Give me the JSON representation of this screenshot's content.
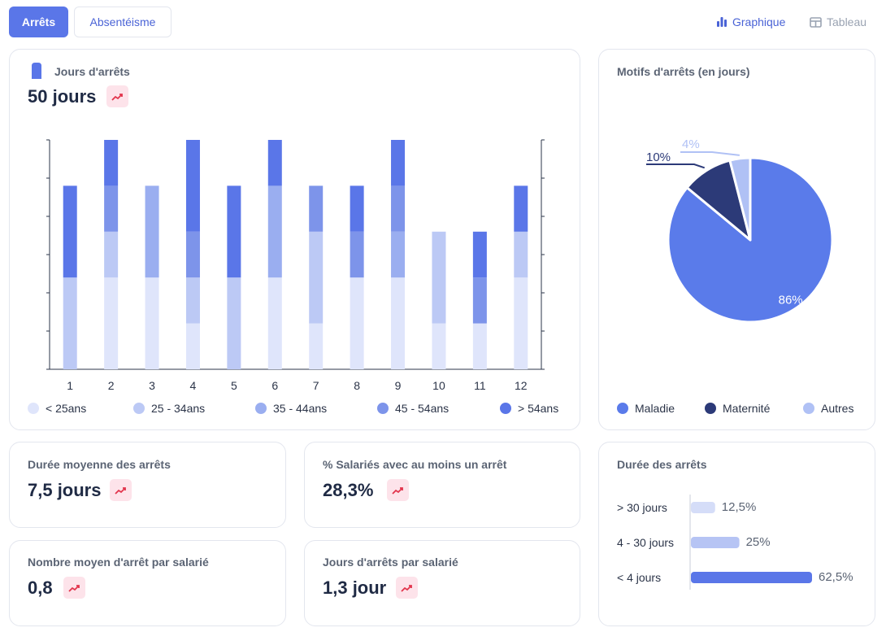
{
  "tabs": {
    "active": "Arrêts",
    "inactive": "Absentéisme"
  },
  "view": {
    "graph": "Graphique",
    "table": "Tableau"
  },
  "colors": {
    "age": [
      "#dfe5fb",
      "#bcc9f5",
      "#9aaef0",
      "#7d94ea",
      "#5a76e8"
    ],
    "pie": [
      "#5a7bea",
      "#2c3a78",
      "#b0c1f5"
    ],
    "trend_icon": "#e2344c",
    "hbar": [
      "#d5ddf8",
      "#b6c4f4",
      "#5a76e8"
    ]
  },
  "main": {
    "title": "Jours d'arrêts",
    "value": "50 jours"
  },
  "chart_data": [
    {
      "type": "bar",
      "stacked": true,
      "categories": [
        "1",
        "2",
        "3",
        "4",
        "5",
        "6",
        "7",
        "8",
        "9",
        "10",
        "11",
        "12"
      ],
      "series": [
        {
          "name": "< 25ans",
          "values": [
            0,
            2,
            2,
            1,
            0,
            2,
            1,
            2,
            2,
            1,
            1,
            2
          ]
        },
        {
          "name": "25 - 34ans",
          "values": [
            2,
            1,
            0,
            1,
            2,
            0,
            2,
            0,
            0,
            2,
            0,
            1
          ]
        },
        {
          "name": "35 - 44ans",
          "values": [
            0,
            0,
            2,
            0,
            0,
            2,
            0,
            0,
            1,
            0,
            0,
            0
          ]
        },
        {
          "name": "45 - 54ans",
          "values": [
            0,
            1,
            0,
            1,
            0,
            0,
            1,
            1,
            1,
            0,
            1,
            0
          ]
        },
        {
          "name": "> 54ans",
          "values": [
            2,
            1,
            0,
            2,
            2,
            1,
            0,
            1,
            1,
            0,
            1,
            1
          ]
        }
      ],
      "ylim": [
        0,
        5
      ],
      "grid": false,
      "legend": "bottom"
    },
    {
      "type": "pie",
      "title": "Motifs d'arrêts (en jours)",
      "labels": [
        "Maladie",
        "Maternité",
        "Autres"
      ],
      "values": [
        86,
        10,
        4
      ],
      "value_labels": [
        "86%",
        "10%",
        "4%"
      ],
      "legend": "bottom"
    },
    {
      "type": "bar",
      "orientation": "horizontal",
      "title": "Durée des arrêts",
      "categories": [
        "> 30 jours",
        "4 - 30 jours",
        "< 4 jours"
      ],
      "values": [
        12.5,
        25,
        62.5
      ],
      "value_labels": [
        "12,5%",
        "25%",
        "62,5%"
      ],
      "xlim": [
        0,
        62.5
      ]
    }
  ],
  "kpis": [
    {
      "label": "Durée moyenne des arrêts",
      "value": "7,5 jours"
    },
    {
      "label": "% Salariés avec au moins un arrêt",
      "value": "28,3%"
    },
    {
      "label": "Nombre moyen d'arrêt par salarié",
      "value": "0,8"
    },
    {
      "label": "Jours d'arrêts par salarié",
      "value": "1,3 jour"
    }
  ]
}
